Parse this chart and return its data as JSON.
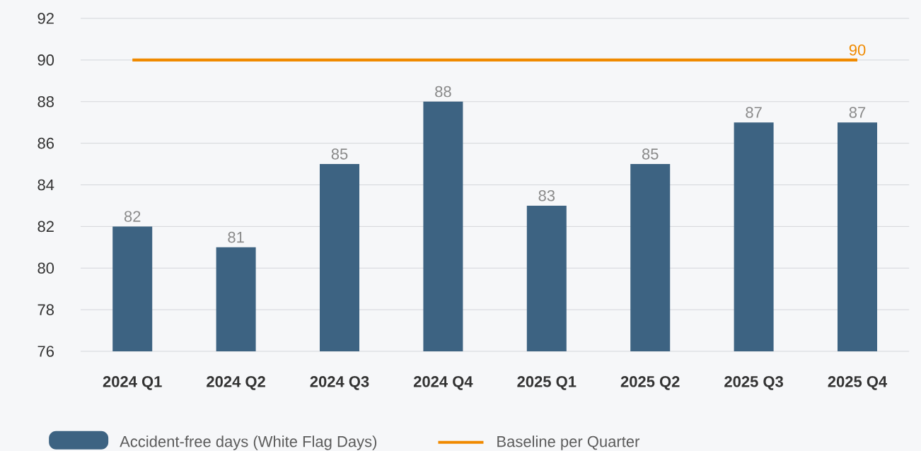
{
  "chart_data": {
    "type": "bar",
    "categories": [
      "2024 Q1",
      "2024 Q2",
      "2024 Q3",
      "2024 Q4",
      "2025 Q1",
      "2025 Q2",
      "2025 Q3",
      "2025 Q4"
    ],
    "series": [
      {
        "name": "Accident-free days (White Flag Days)",
        "color": "#3d6382",
        "values": [
          82,
          81,
          85,
          88,
          83,
          85,
          87,
          87
        ],
        "value_labels": [
          "82",
          "81",
          "85",
          "88",
          "83",
          "85",
          "87",
          "87"
        ]
      },
      {
        "name": "Baseline per Quarter",
        "type": "line",
        "color": "#f08a00",
        "values": [
          90,
          90,
          90,
          90,
          90,
          90,
          90,
          90
        ],
        "value_labels": [
          null,
          null,
          null,
          null,
          null,
          null,
          null,
          "90"
        ]
      }
    ],
    "ylim": [
      76,
      92
    ],
    "yticks": [
      76,
      78,
      80,
      82,
      84,
      86,
      88,
      90,
      92
    ],
    "grid": "y",
    "legend": "bottom"
  }
}
